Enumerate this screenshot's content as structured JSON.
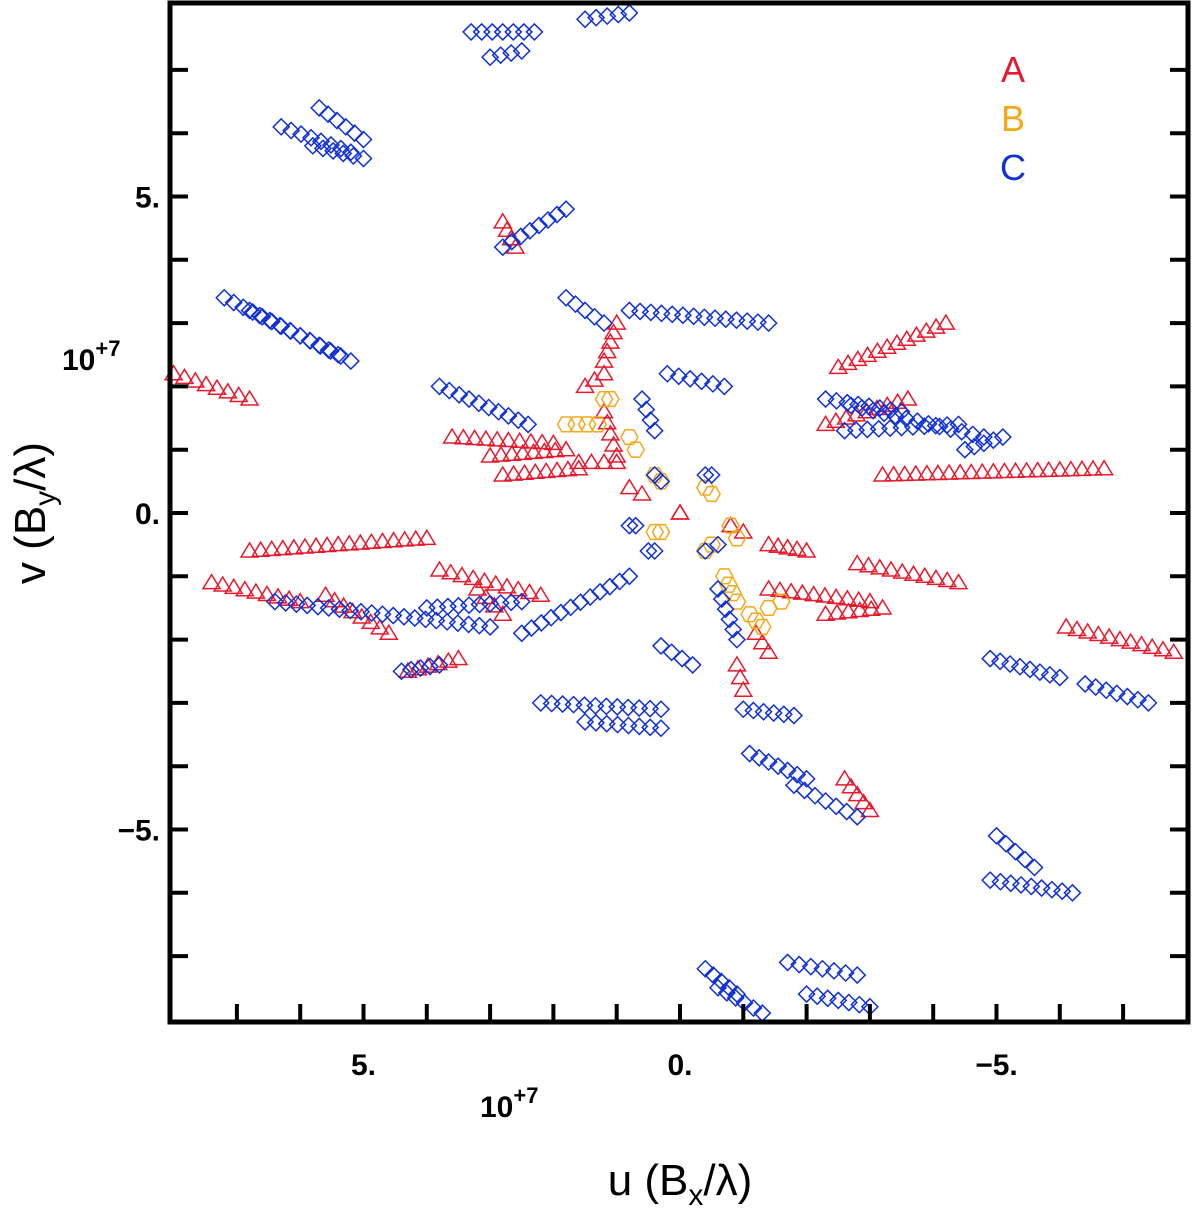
{
  "chart_data": {
    "type": "scatter",
    "title": "",
    "xlabel": "u (B",
    "xlabel_sub": "x",
    "xlabel_tail": "/λ)",
    "ylabel": "v (B",
    "ylabel_sub": "y",
    "ylabel_tail": "/λ)",
    "x_exponent_label": "10",
    "x_exponent_power": "+7",
    "y_exponent_label": "10",
    "y_exponent_power": "+7",
    "xlim": [
      8.0,
      -8.0
    ],
    "ylim": [
      -8.0,
      8.0
    ],
    "x_tick_labels": [
      "5.",
      "0.",
      "−5."
    ],
    "y_tick_labels": [
      "5.",
      "0.",
      "−5."
    ],
    "legend_position": "top-right",
    "series": [
      {
        "name": "A",
        "marker": "triangle",
        "color": "#e8192c",
        "tracks": [
          [
            [
              8.0,
              2.2
            ],
            [
              6.8,
              1.8
            ]
          ],
          [
            [
              6.8,
              -0.6
            ],
            [
              4.0,
              -0.4
            ]
          ],
          [
            [
              2.8,
              4.6
            ],
            [
              2.6,
              4.2
            ]
          ],
          [
            [
              2.0,
              1.1
            ],
            [
              3.6,
              1.2
            ]
          ],
          [
            [
              1.8,
              1.0
            ],
            [
              3.0,
              0.9
            ]
          ],
          [
            [
              1.6,
              0.7
            ],
            [
              2.8,
              0.6
            ]
          ],
          [
            [
              1.0,
              0.8
            ],
            [
              1.6,
              0.8
            ]
          ],
          [
            [
              1.2,
              2.2
            ],
            [
              1.5,
              2.0
            ]
          ],
          [
            [
              1.2,
              1.6
            ],
            [
              1.0,
              0.9
            ]
          ],
          [
            [
              1.0,
              3.0
            ],
            [
              1.2,
              2.4
            ]
          ],
          [
            [
              0.8,
              0.4
            ],
            [
              0.6,
              0.3
            ]
          ],
          [
            [
              0.0,
              0.0
            ],
            [
              0.0,
              0.0
            ]
          ],
          [
            [
              -0.8,
              -0.2
            ],
            [
              -1.0,
              -0.3
            ]
          ],
          [
            [
              -1.4,
              -0.5
            ],
            [
              -2.0,
              -0.6
            ]
          ],
          [
            [
              -1.2,
              -1.9
            ],
            [
              -1.4,
              -2.2
            ]
          ],
          [
            [
              -0.9,
              -2.4
            ],
            [
              -1.0,
              -2.8
            ]
          ],
          [
            [
              -2.5,
              2.3
            ],
            [
              -4.2,
              3.0
            ]
          ],
          [
            [
              -2.3,
              1.4
            ],
            [
              -3.6,
              1.8
            ]
          ],
          [
            [
              -3.2,
              0.6
            ],
            [
              -6.7,
              0.7
            ]
          ],
          [
            [
              -2.8,
              -0.8
            ],
            [
              -4.4,
              -1.1
            ]
          ],
          [
            [
              -1.4,
              -1.2
            ],
            [
              -3.0,
              -1.4
            ]
          ],
          [
            [
              -2.3,
              -1.6
            ],
            [
              -3.2,
              -1.5
            ]
          ],
          [
            [
              -2.6,
              -4.2
            ],
            [
              -3.0,
              -4.7
            ]
          ],
          [
            [
              -6.1,
              -1.8
            ],
            [
              -7.8,
              -2.2
            ]
          ],
          [
            [
              2.2,
              -1.3
            ],
            [
              3.8,
              -0.9
            ]
          ],
          [
            [
              2.8,
              -1.6
            ],
            [
              3.2,
              -1.2
            ]
          ],
          [
            [
              4.6,
              -1.9
            ],
            [
              5.6,
              -1.3
            ]
          ],
          [
            [
              3.5,
              -2.3
            ],
            [
              4.3,
              -2.5
            ]
          ],
          [
            [
              6.0,
              -1.4
            ],
            [
              7.4,
              -1.1
            ]
          ]
        ]
      },
      {
        "name": "B",
        "marker": "hexagon",
        "color": "#f5a81a",
        "tracks": [
          [
            [
              1.3,
              1.4
            ],
            [
              1.8,
              1.4
            ]
          ],
          [
            [
              1.2,
              1.8
            ],
            [
              1.1,
              1.8
            ]
          ],
          [
            [
              0.8,
              1.2
            ],
            [
              0.7,
              1.0
            ]
          ],
          [
            [
              0.4,
              0.6
            ],
            [
              0.3,
              0.5
            ]
          ],
          [
            [
              -0.4,
              0.4
            ],
            [
              -0.5,
              0.3
            ]
          ],
          [
            [
              -0.8,
              -0.2
            ],
            [
              -0.9,
              -0.4
            ]
          ],
          [
            [
              -0.4,
              -0.6
            ],
            [
              -0.5,
              -0.5
            ]
          ],
          [
            [
              0.4,
              -0.3
            ],
            [
              0.3,
              -0.3
            ]
          ],
          [
            [
              -0.7,
              -1.0
            ],
            [
              -0.9,
              -1.4
            ]
          ],
          [
            [
              -1.4,
              -1.5
            ],
            [
              -1.6,
              -1.4
            ]
          ],
          [
            [
              -1.1,
              -1.6
            ],
            [
              -1.3,
              -1.8
            ]
          ]
        ]
      },
      {
        "name": "C",
        "marker": "diamond",
        "color": "#1030d8",
        "tracks": [
          [
            [
              3.3,
              7.6
            ],
            [
              2.3,
              7.6
            ]
          ],
          [
            [
              3.0,
              7.2
            ],
            [
              2.5,
              7.3
            ]
          ],
          [
            [
              1.5,
              7.8
            ],
            [
              0.8,
              7.9
            ]
          ],
          [
            [
              6.3,
              6.1
            ],
            [
              5.2,
              5.7
            ]
          ],
          [
            [
              5.8,
              5.8
            ],
            [
              5.0,
              5.6
            ]
          ],
          [
            [
              5.7,
              6.4
            ],
            [
              5.0,
              5.9
            ]
          ],
          [
            [
              7.2,
              3.4
            ],
            [
              5.4,
              2.5
            ]
          ],
          [
            [
              6.8,
              3.2
            ],
            [
              5.2,
              2.4
            ]
          ],
          [
            [
              3.8,
              2.0
            ],
            [
              2.4,
              1.4
            ]
          ],
          [
            [
              2.8,
              4.2
            ],
            [
              1.8,
              4.8
            ]
          ],
          [
            [
              1.8,
              3.4
            ],
            [
              1.2,
              3.0
            ]
          ],
          [
            [
              0.8,
              3.2
            ],
            [
              -1.4,
              3.0
            ]
          ],
          [
            [
              0.2,
              2.2
            ],
            [
              -0.7,
              2.0
            ]
          ],
          [
            [
              0.6,
              1.8
            ],
            [
              0.4,
              1.3
            ]
          ],
          [
            [
              -2.3,
              1.8
            ],
            [
              -3.5,
              1.6
            ]
          ],
          [
            [
              -2.6,
              1.3
            ],
            [
              -4.4,
              1.4
            ]
          ],
          [
            [
              0.8,
              -1.0
            ],
            [
              2.5,
              -1.9
            ]
          ],
          [
            [
              4.0,
              -1.5
            ],
            [
              2.5,
              -1.4
            ]
          ],
          [
            [
              6.4,
              -1.4
            ],
            [
              3.0,
              -1.8
            ]
          ],
          [
            [
              4.4,
              -2.5
            ],
            [
              3.8,
              -2.4
            ]
          ],
          [
            [
              2.2,
              -3.0
            ],
            [
              0.3,
              -3.1
            ]
          ],
          [
            [
              1.5,
              -3.3
            ],
            [
              0.3,
              -3.4
            ]
          ],
          [
            [
              0.3,
              -2.1
            ],
            [
              -0.2,
              -2.4
            ]
          ],
          [
            [
              -0.6,
              -1.2
            ],
            [
              -0.9,
              -2.0
            ]
          ],
          [
            [
              -1.0,
              -3.1
            ],
            [
              -1.8,
              -3.2
            ]
          ],
          [
            [
              -1.1,
              -3.8
            ],
            [
              -2.0,
              -4.2
            ]
          ],
          [
            [
              -1.8,
              -4.3
            ],
            [
              -2.8,
              -4.8
            ]
          ],
          [
            [
              -4.9,
              -2.3
            ],
            [
              -6.0,
              -2.6
            ]
          ],
          [
            [
              -6.4,
              -2.7
            ],
            [
              -7.4,
              -3.0
            ]
          ],
          [
            [
              -5.0,
              -5.1
            ],
            [
              -5.6,
              -5.6
            ]
          ],
          [
            [
              -4.9,
              -5.8
            ],
            [
              -6.2,
              -6.0
            ]
          ],
          [
            [
              -0.4,
              -7.2
            ],
            [
              -0.9,
              -7.6
            ]
          ],
          [
            [
              -1.7,
              -7.1
            ],
            [
              -2.8,
              -7.3
            ]
          ],
          [
            [
              -2.0,
              -7.6
            ],
            [
              -3.0,
              -7.8
            ]
          ],
          [
            [
              -0.6,
              -7.5
            ],
            [
              -1.3,
              -7.9
            ]
          ],
          [
            [
              -4.5,
              1.0
            ],
            [
              -5.1,
              1.2
            ]
          ],
          [
            [
              -2.7,
              1.7
            ],
            [
              -4.8,
              1.2
            ]
          ],
          [
            [
              -0.4,
              -0.6
            ],
            [
              -0.6,
              -0.5
            ]
          ],
          [
            [
              0.4,
              -0.6
            ],
            [
              0.5,
              -0.6
            ]
          ],
          [
            [
              -0.4,
              0.6
            ],
            [
              -0.5,
              0.6
            ]
          ],
          [
            [
              0.8,
              -0.2
            ],
            [
              0.7,
              -0.2
            ]
          ],
          [
            [
              0.3,
              0.5
            ],
            [
              0.4,
              0.6
            ]
          ]
        ]
      }
    ]
  }
}
